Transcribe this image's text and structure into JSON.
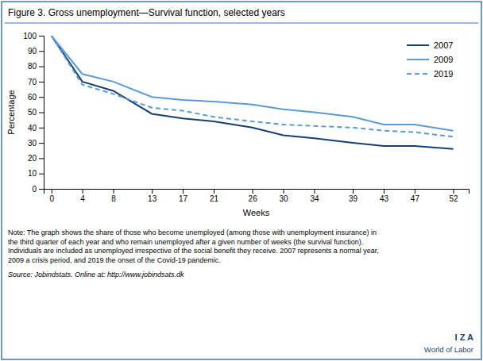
{
  "chart_data": {
    "type": "line",
    "title": "Figure 3. Gross unemployment—Survival function, selected years",
    "x_label": "Weeks",
    "y_label": "Percentage",
    "x": [
      0,
      4,
      8,
      13,
      17,
      21,
      26,
      30,
      34,
      39,
      43,
      47,
      52
    ],
    "xlim": [
      -1,
      54
    ],
    "xticks": [
      0,
      4,
      8,
      13,
      17,
      21,
      26,
      30,
      34,
      39,
      43,
      47,
      52
    ],
    "ylim": [
      0,
      100
    ],
    "yticks": [
      0,
      10,
      20,
      30,
      40,
      50,
      60,
      70,
      80,
      90,
      100
    ],
    "grid": false,
    "legend": "upper right",
    "series": [
      {
        "name": "2007",
        "color": "#1a3f6f",
        "line_style": "solid",
        "values": [
          100,
          70,
          64,
          49,
          46,
          44,
          40,
          35,
          33,
          30,
          28,
          28,
          26
        ]
      },
      {
        "name": "2009",
        "color": "#5b9bd5",
        "line_style": "solid",
        "values": [
          100,
          75,
          70,
          60,
          58,
          57,
          55,
          52,
          50,
          47,
          42,
          42,
          38
        ]
      },
      {
        "name": "2019",
        "color": "#5b9bd5",
        "line_style": "dashed",
        "values": [
          100,
          68,
          62,
          53,
          51,
          47,
          44,
          42,
          41,
          40,
          38,
          37,
          34
        ]
      }
    ],
    "annotations": [
      "Note: The graph shows the share of those who become unemployed (among those with unemployment insurance) in\nthe third quarter of each year and who remain unemployed after a given number of weeks  (the survival function).\nIndividuals are included as unemployed irrespective of the social benefit they receive. 2007 represents a normal year,\n2009 a crisis period, and 2019 the onset of the Covid-19 pandemic.",
      "Source: Jobindstats. Online at: http://www.jobindsats.dk",
      "I Z A",
      "World of Labor"
    ]
  }
}
